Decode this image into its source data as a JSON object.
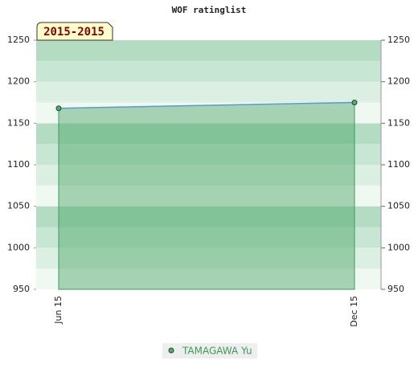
{
  "chart_data": {
    "type": "line",
    "title": "WOF ratinglist",
    "range_label": "2015-2015",
    "categories": [
      "Jun 15",
      "Dec 15"
    ],
    "series": [
      {
        "name": "TAMAGAWA Yu",
        "color": "#5b9bd5",
        "values": [
          1168,
          1175
        ]
      }
    ],
    "ylim": [
      950,
      1250
    ],
    "yticks": [
      950,
      1000,
      1050,
      1100,
      1150,
      1200,
      1250
    ],
    "y2lim": [
      950,
      1250
    ],
    "y2ticks": [
      950,
      1000,
      1050,
      1100,
      1150,
      1200,
      1250
    ]
  }
}
